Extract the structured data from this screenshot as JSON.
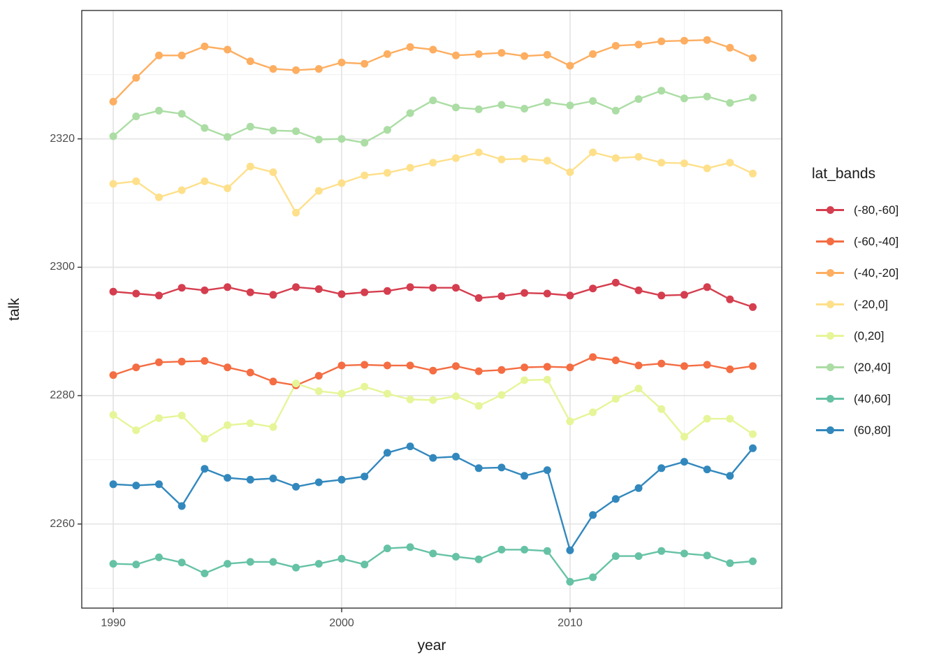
{
  "chart_data": {
    "type": "line",
    "title": "",
    "xlabel": "year",
    "ylabel": "talk",
    "legend_title": "lat_bands",
    "legend_position": "right",
    "grid": "major+minor",
    "panel_background": "#ffffff",
    "panel_border_color": "#333333",
    "grid_major_color": "#e4e4e4",
    "grid_minor_color": "#f1f1f1",
    "tick_label_color": "#4d4d4d",
    "xlim": [
      1988.62,
      2019.27
    ],
    "ylim": [
      2246.9,
      2340.0
    ],
    "x_ticks": [
      1990,
      2000,
      2010
    ],
    "x_minor_ticks": [
      1995,
      2005,
      2015
    ],
    "y_ticks": [
      2260,
      2280,
      2300,
      2320
    ],
    "y_minor_ticks": [
      2250,
      2270,
      2290,
      2310,
      2330
    ],
    "x": [
      1990,
      1991,
      1992,
      1993,
      1994,
      1995,
      1996,
      1997,
      1998,
      1999,
      2000,
      2001,
      2002,
      2003,
      2004,
      2005,
      2006,
      2007,
      2008,
      2009,
      2010,
      2011,
      2012,
      2013,
      2014,
      2015,
      2016,
      2017,
      2018
    ],
    "series": [
      {
        "name": "(-80,-60]",
        "color": "#D53E4F",
        "values": [
          2296.2,
          2295.9,
          2295.6,
          2296.8,
          2296.4,
          2296.9,
          2296.1,
          2295.7,
          2296.9,
          2296.6,
          2295.8,
          2296.1,
          2296.3,
          2296.9,
          2296.8,
          2296.8,
          2295.2,
          2295.5,
          2296.0,
          2295.9,
          2295.6,
          2296.7,
          2297.6,
          2296.4,
          2295.6,
          2295.7,
          2296.9,
          2295.0,
          2293.8
        ]
      },
      {
        "name": "(-60,-40]",
        "color": "#F46D43",
        "values": [
          2283.2,
          2284.4,
          2285.2,
          2285.3,
          2285.4,
          2284.4,
          2283.6,
          2282.2,
          2281.6,
          2283.1,
          2284.7,
          2284.8,
          2284.7,
          2284.7,
          2283.9,
          2284.6,
          2283.8,
          2284.0,
          2284.4,
          2284.5,
          2284.4,
          2286.0,
          2285.5,
          2284.7,
          2285.0,
          2284.6,
          2284.8,
          2284.1,
          2284.6
        ]
      },
      {
        "name": "(-40,-20]",
        "color": "#FDAE61",
        "values": [
          2325.8,
          2329.5,
          2333.0,
          2333.0,
          2334.4,
          2333.9,
          2332.1,
          2330.9,
          2330.7,
          2330.9,
          2331.9,
          2331.7,
          2333.2,
          2334.3,
          2333.9,
          2333.0,
          2333.2,
          2333.4,
          2332.9,
          2333.1,
          2331.4,
          2333.2,
          2334.5,
          2334.7,
          2335.2,
          2335.3,
          2335.4,
          2334.2,
          2332.6
        ]
      },
      {
        "name": "(-20,0]",
        "color": "#FEE08B",
        "values": [
          2313.0,
          2313.4,
          2310.9,
          2312.0,
          2313.4,
          2312.3,
          2315.7,
          2314.8,
          2308.5,
          2311.9,
          2313.1,
          2314.3,
          2314.7,
          2315.5,
          2316.3,
          2317.0,
          2317.9,
          2316.8,
          2316.9,
          2316.6,
          2314.8,
          2317.9,
          2317.0,
          2317.2,
          2316.3,
          2316.2,
          2315.4,
          2316.3,
          2314.6
        ]
      },
      {
        "name": "(0,20]",
        "color": "#E6F598",
        "values": [
          2277.0,
          2274.6,
          2276.5,
          2276.9,
          2273.3,
          2275.4,
          2275.7,
          2275.1,
          2281.9,
          2280.7,
          2280.3,
          2281.4,
          2280.3,
          2279.4,
          2279.3,
          2279.9,
          2278.4,
          2280.1,
          2282.4,
          2282.5,
          2276.0,
          2277.4,
          2279.5,
          2281.1,
          2277.9,
          2273.6,
          2276.4,
          2276.4,
          2274.0
        ]
      },
      {
        "name": "(20,40]",
        "color": "#ABDDA4",
        "values": [
          2320.4,
          2323.5,
          2324.4,
          2323.9,
          2321.7,
          2320.3,
          2321.9,
          2321.3,
          2321.2,
          2319.9,
          2320.0,
          2319.4,
          2321.4,
          2324.0,
          2326.0,
          2324.9,
          2324.6,
          2325.3,
          2324.7,
          2325.7,
          2325.2,
          2325.9,
          2324.4,
          2326.2,
          2327.5,
          2326.3,
          2326.6,
          2325.6,
          2326.4
        ]
      },
      {
        "name": "(40,60]",
        "color": "#66C2A5",
        "values": [
          2253.8,
          2253.7,
          2254.8,
          2254.0,
          2252.3,
          2253.8,
          2254.1,
          2254.1,
          2253.2,
          2253.8,
          2254.6,
          2253.7,
          2256.2,
          2256.4,
          2255.4,
          2254.9,
          2254.5,
          2256.0,
          2256.0,
          2255.8,
          2251.0,
          2251.7,
          2255.0,
          2255.0,
          2255.8,
          2255.4,
          2255.1,
          2253.9,
          2254.2
        ]
      },
      {
        "name": "(60,80]",
        "color": "#3288BD",
        "values": [
          2266.2,
          2266.0,
          2266.2,
          2262.8,
          2268.6,
          2267.2,
          2266.9,
          2267.1,
          2265.8,
          2266.5,
          2266.9,
          2267.4,
          2271.1,
          2272.1,
          2270.3,
          2270.5,
          2268.7,
          2268.8,
          2267.5,
          2268.4,
          2255.9,
          2261.4,
          2263.9,
          2265.6,
          2268.7,
          2269.7,
          2268.5,
          2267.5,
          2271.8
        ]
      }
    ]
  }
}
